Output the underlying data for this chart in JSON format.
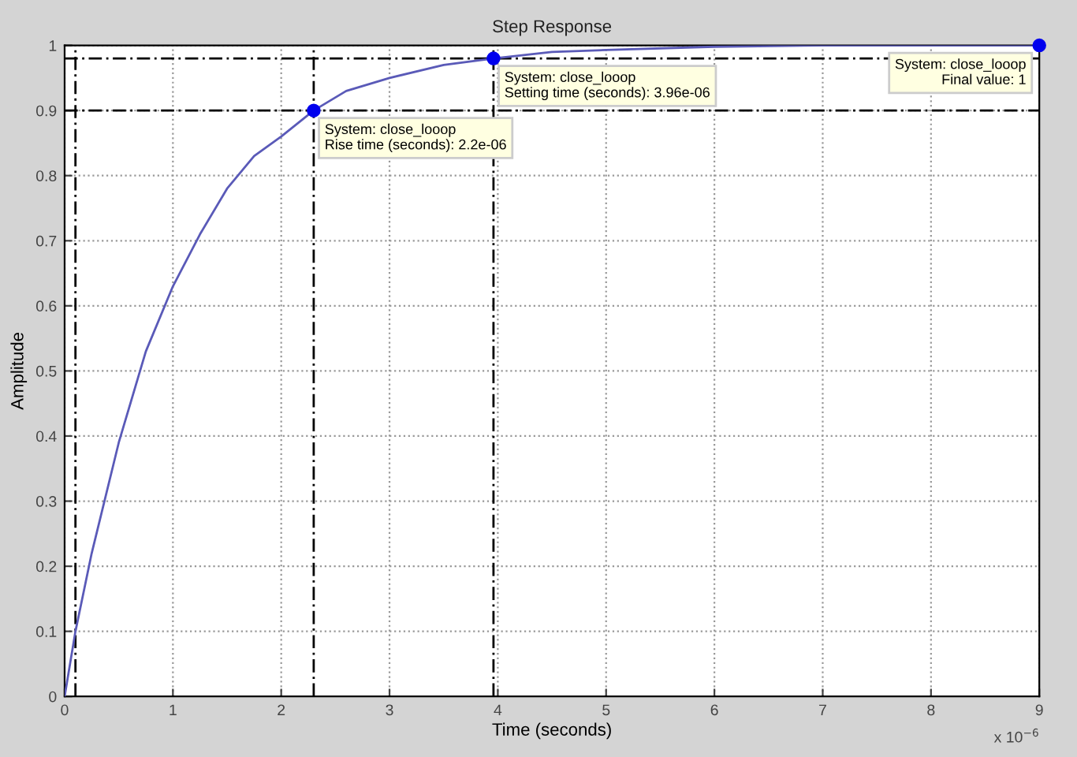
{
  "chart_data": {
    "type": "line",
    "title": "Step Response",
    "xlabel": "Time (seconds)",
    "ylabel": "Amplitude",
    "x": [
      0,
      0.1,
      0.25,
      0.5,
      0.75,
      1,
      1.25,
      1.5,
      1.75,
      2,
      2.3,
      2.6,
      3,
      3.5,
      3.96,
      4.5,
      5,
      6,
      7,
      8,
      9
    ],
    "series": [
      {
        "color": "#5a5ab8",
        "values": [
          0,
          0.1,
          0.22,
          0.39,
          0.53,
          0.63,
          0.71,
          0.78,
          0.83,
          0.86,
          0.9,
          0.93,
          0.95,
          0.97,
          0.98,
          0.99,
          0.993,
          0.998,
          1,
          1,
          1
        ]
      },
      {
        "type": "scatter",
        "color": "#0000ee",
        "x": [
          2.3,
          3.96,
          9
        ],
        "values": [
          0.9,
          0.98,
          1
        ],
        "marker": "circle"
      }
    ],
    "xlim": [
      0,
      9
    ],
    "ylim": [
      0,
      1
    ],
    "xticks": [
      0,
      1,
      2,
      3,
      4,
      5,
      6,
      7,
      8,
      9
    ],
    "yticks": [
      0,
      0.1,
      0.2,
      0.3,
      0.4,
      0.5,
      0.6,
      0.7,
      0.8,
      0.9,
      1
    ],
    "grid": true,
    "ref_lines": [
      {
        "axis": "y",
        "value": 0.9,
        "color": "#000000",
        "line_style": "dashed"
      },
      {
        "axis": "y",
        "value": 0.98,
        "color": "#000000",
        "line_style": "dashed"
      },
      {
        "axis": "x",
        "value": 0.1,
        "color": "#000000",
        "line_style": "dashed"
      },
      {
        "axis": "x",
        "value": 2.3,
        "color": "#000000",
        "line_style": "dashed"
      },
      {
        "axis": "x",
        "value": 3.96,
        "color": "#000000",
        "line_style": "dashed"
      }
    ],
    "annotations": [
      {
        "text": "System: close_looop\nRise time (seconds): 2.2e-06",
        "x": 2.3,
        "y": 0.9
      },
      {
        "text": "System: close_looop\nSetting time (seconds): 3.96e-06",
        "x": 3.96,
        "y": 0.98
      },
      {
        "text": "System: close_looop\nFinal value: 1",
        "x": 9,
        "y": 1
      },
      "x 10$^{−6}$"
    ]
  }
}
